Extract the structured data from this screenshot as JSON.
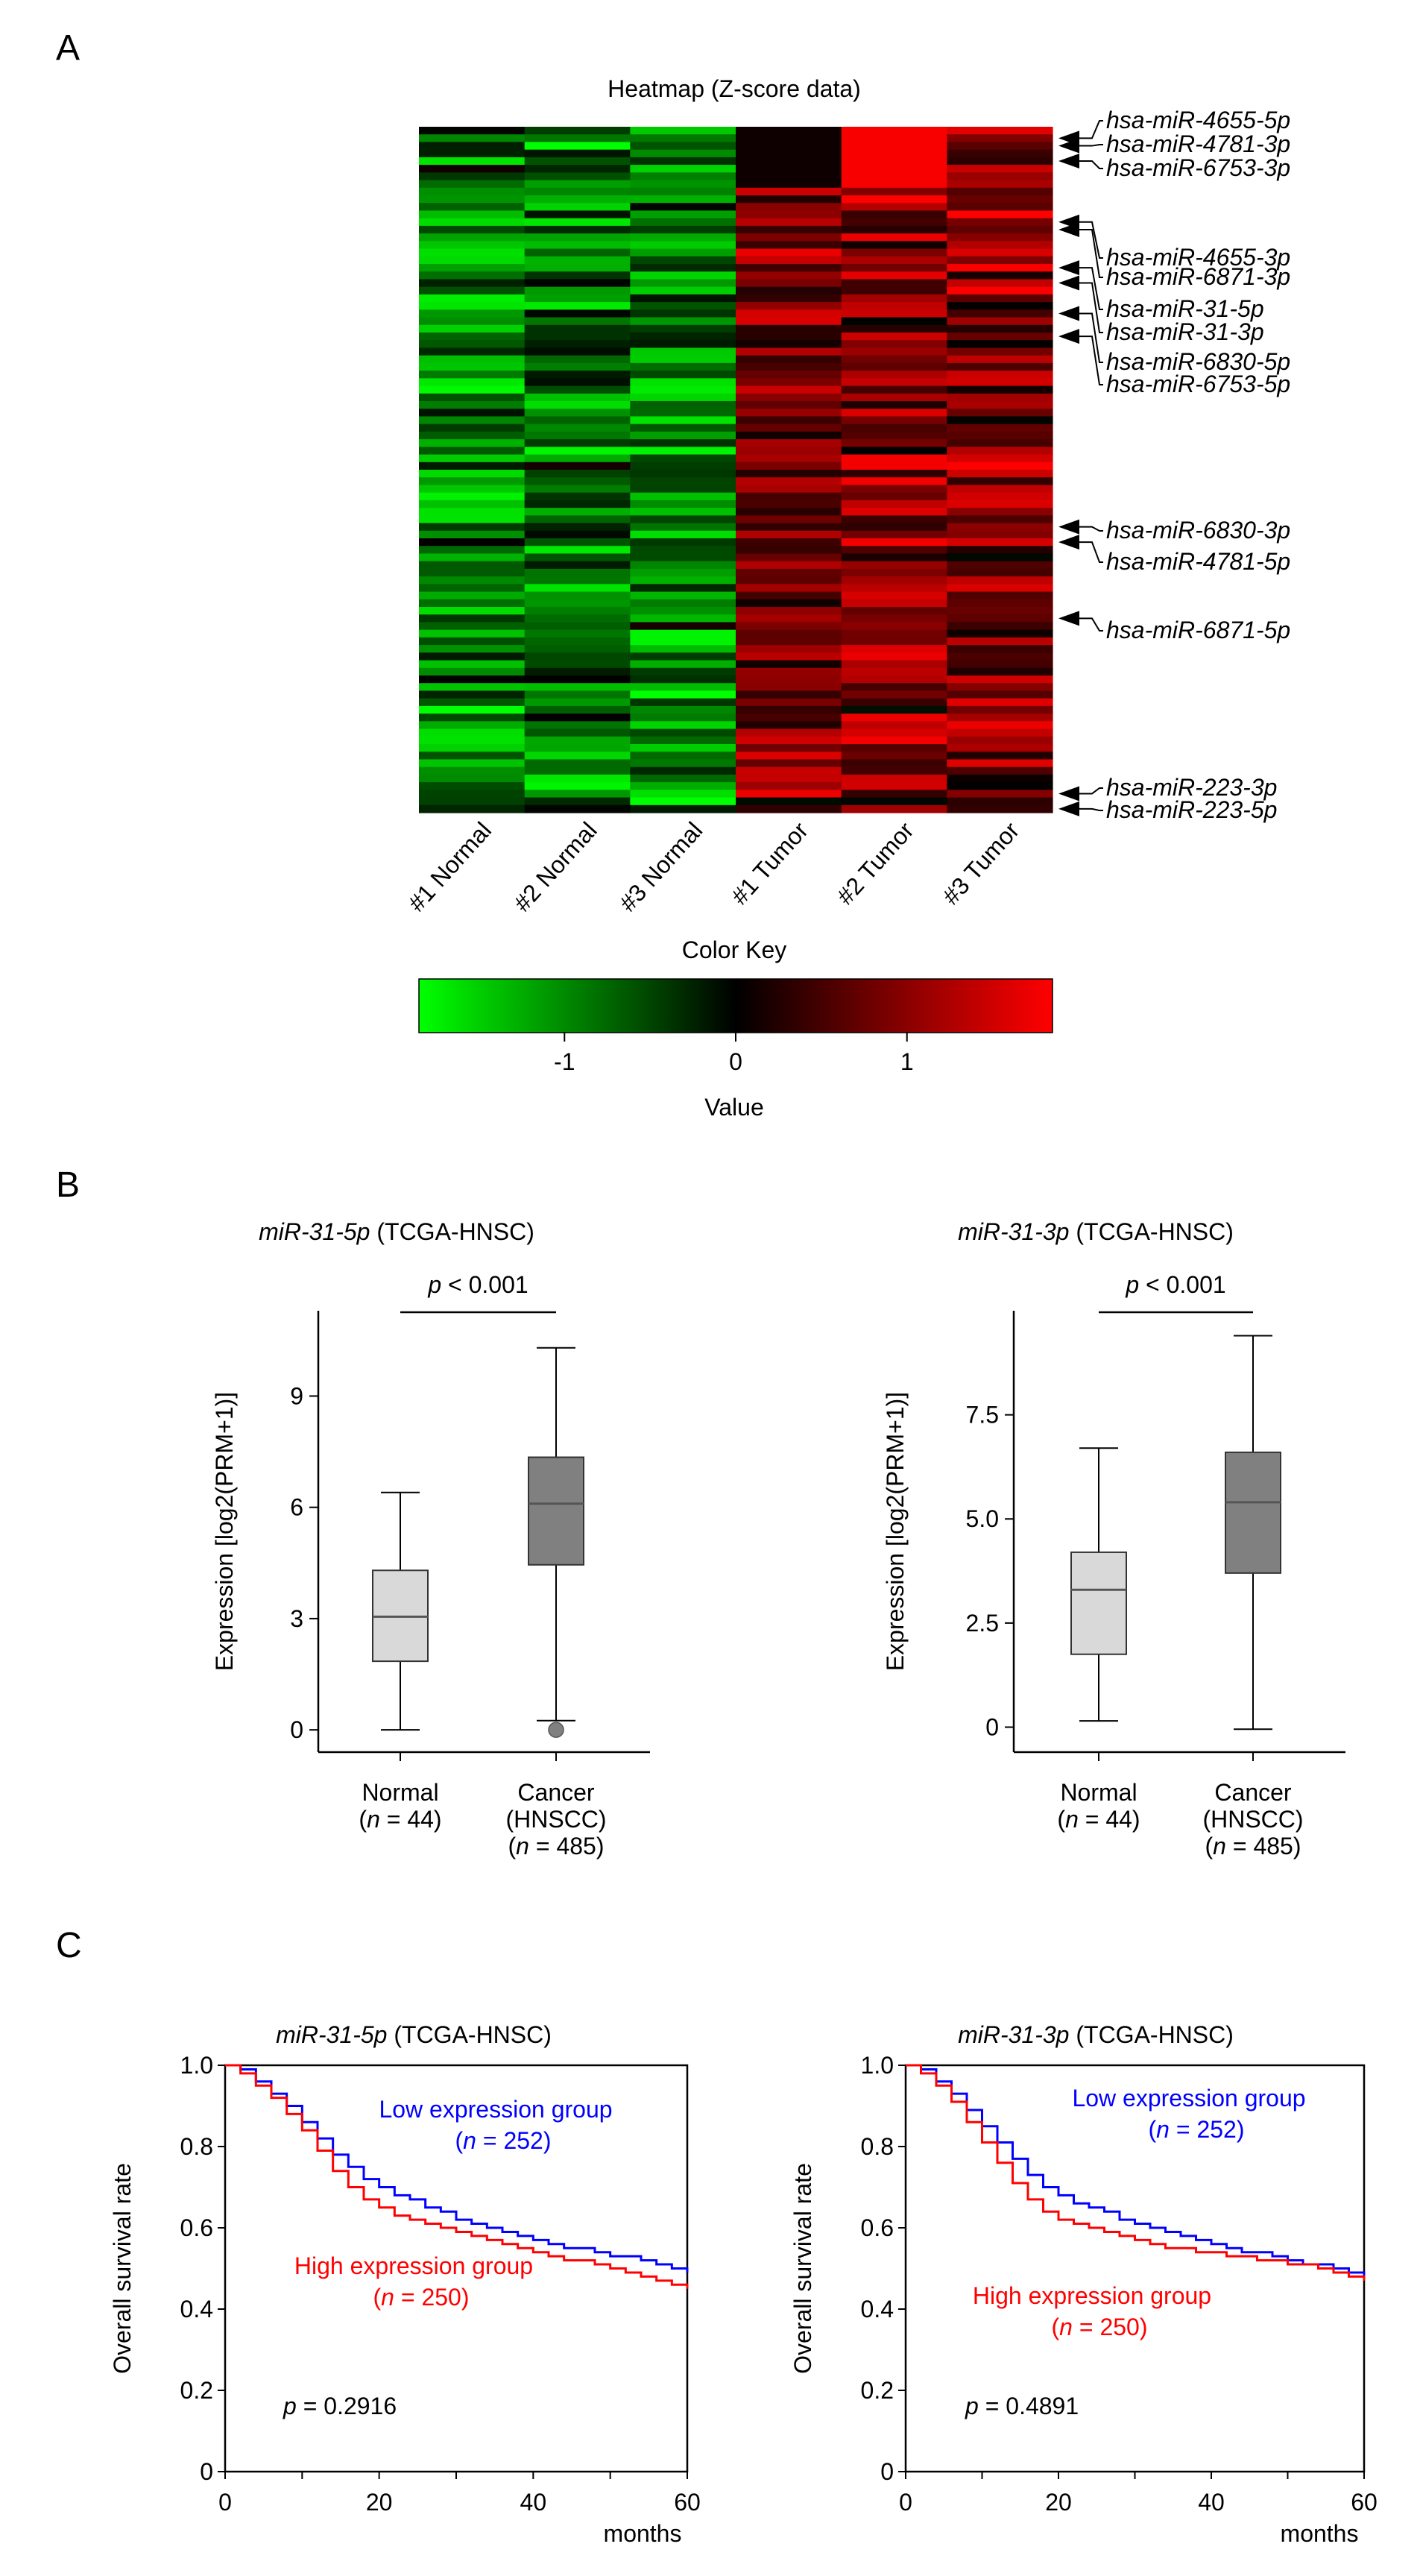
{
  "panels": {
    "a": "A",
    "b": "B",
    "c": "C"
  },
  "heatmap": {
    "title": "Heatmap (Z-score data)",
    "columns": [
      "#1 Normal",
      "#2 Normal",
      "#3 Normal",
      "#1 Tumor",
      "#2 Tumor",
      "#3 Tumor"
    ],
    "annotated_mirnas": [
      {
        "label": "hsa-miR-4655-5p",
        "row": 1
      },
      {
        "label": "hsa-miR-4781-3p",
        "row": 2
      },
      {
        "label": "hsa-miR-6753-3p",
        "row": 4
      },
      {
        "label": "hsa-miR-4655-3p",
        "row": 12
      },
      {
        "label": "hsa-miR-6871-3p",
        "row": 13
      },
      {
        "label": "hsa-miR-31-5p",
        "row": 18
      },
      {
        "label": "hsa-miR-31-3p",
        "row": 20
      },
      {
        "label": "hsa-miR-6830-5p",
        "row": 24
      },
      {
        "label": "hsa-miR-6753-5p",
        "row": 27
      },
      {
        "label": "hsa-miR-6830-3p",
        "row": 52
      },
      {
        "label": "hsa-miR-4781-5p",
        "row": 54
      },
      {
        "label": "hsa-miR-6871-5p",
        "row": 64
      },
      {
        "label": "hsa-miR-223-3p",
        "row": 87
      },
      {
        "label": "hsa-miR-223-5p",
        "row": 89
      }
    ],
    "colors": {
      "low": "#00ff00",
      "mid": "#000000",
      "high": "#ff0000"
    },
    "color_key": {
      "title": "Color Key",
      "xlabel": "Value",
      "ticks": [
        "-1",
        "0",
        "1"
      ],
      "range": [
        -1.85,
        1.85
      ]
    }
  },
  "chart_data": [
    {
      "type": "heatmap",
      "title": "Heatmap (Z-score data)",
      "columns": [
        "#1 Normal",
        "#2 Normal",
        "#3 Normal",
        "#1 Tumor",
        "#2 Tumor",
        "#3 Tumor"
      ],
      "n_rows": 90,
      "pattern": "Normal samples predominantly negative Z-scores (green); Tumor samples predominantly positive (red)",
      "value_range": [
        -1.85,
        1.85
      ]
    },
    {
      "type": "box",
      "title_gene": "miR-31-5p",
      "title_suffix": " (TCGA-HNSC)",
      "p_text": "p < 0.001",
      "ylabel": "Expression [log2(PRM+1)]",
      "ylim": [
        -0.6,
        11.3
      ],
      "yticks": [
        0,
        3,
        6,
        9
      ],
      "groups": [
        {
          "label": [
            "Normal",
            "(n = 44)"
          ],
          "min": 0.0,
          "q1": 1.85,
          "median": 3.05,
          "q3": 4.3,
          "max": 6.4,
          "outliers": [],
          "color": "#d9d9d9"
        },
        {
          "label": [
            "Cancer",
            "(HNSCC)",
            "(n = 485)"
          ],
          "min": 0.25,
          "q1": 4.45,
          "median": 6.1,
          "q3": 7.35,
          "max": 10.3,
          "outliers": [
            0.0
          ],
          "color": "#808080"
        }
      ]
    },
    {
      "type": "box",
      "title_gene": "miR-31-3p",
      "title_suffix": " (TCGA-HNSC)",
      "p_text": "p < 0.001",
      "ylabel": "Expression [log2(PRM+1)]",
      "ylim": [
        -0.6,
        10.0
      ],
      "yticks": [
        "0",
        "2.5",
        "5.0",
        "7.5"
      ],
      "groups": [
        {
          "label": [
            "Normal",
            "(n = 44)"
          ],
          "min": 0.15,
          "q1": 1.75,
          "median": 3.3,
          "q3": 4.2,
          "max": 6.7,
          "outliers": [],
          "color": "#d9d9d9"
        },
        {
          "label": [
            "Cancer",
            "(HNSCC)",
            "(n = 485)"
          ],
          "min": -0.05,
          "q1": 3.7,
          "median": 5.4,
          "q3": 6.6,
          "max": 9.4,
          "outliers": [],
          "color": "#808080"
        }
      ]
    },
    {
      "type": "line",
      "title_gene": "miR-31-5p",
      "title_suffix": " (TCGA-HNSC)",
      "ylabel": "Overall survival rate",
      "xlabel": "months",
      "xlim": [
        0,
        60
      ],
      "ylim": [
        0,
        1
      ],
      "xticks": [
        "0",
        "20",
        "40",
        "60"
      ],
      "yticks": [
        "0",
        "0.2",
        "0.4",
        "0.6",
        "0.8",
        "1.0"
      ],
      "p_value": "0.2916",
      "series": [
        {
          "name": "Low expression group",
          "n_text": "(n = 252)",
          "color": "#0000ff",
          "x": [
            0,
            2,
            4,
            6,
            8,
            10,
            12,
            14,
            16,
            18,
            20,
            22,
            24,
            26,
            28,
            30,
            32,
            34,
            36,
            38,
            40,
            42,
            44,
            46,
            48,
            50,
            52,
            54,
            56,
            58,
            60
          ],
          "y": [
            1.0,
            0.99,
            0.96,
            0.93,
            0.9,
            0.86,
            0.82,
            0.78,
            0.75,
            0.72,
            0.7,
            0.68,
            0.67,
            0.65,
            0.64,
            0.62,
            0.61,
            0.6,
            0.59,
            0.58,
            0.57,
            0.56,
            0.55,
            0.55,
            0.54,
            0.53,
            0.53,
            0.52,
            0.51,
            0.5,
            0.49
          ]
        },
        {
          "name": "High expression group",
          "n_text": "(n = 250)",
          "color": "#ff0000",
          "x": [
            0,
            2,
            4,
            6,
            8,
            10,
            12,
            14,
            16,
            18,
            20,
            22,
            24,
            26,
            28,
            30,
            32,
            34,
            36,
            38,
            40,
            42,
            44,
            46,
            48,
            50,
            52,
            54,
            56,
            58,
            60
          ],
          "y": [
            1.0,
            0.98,
            0.95,
            0.92,
            0.88,
            0.84,
            0.79,
            0.74,
            0.7,
            0.67,
            0.65,
            0.63,
            0.62,
            0.61,
            0.6,
            0.59,
            0.58,
            0.57,
            0.56,
            0.55,
            0.54,
            0.53,
            0.52,
            0.52,
            0.51,
            0.5,
            0.49,
            0.48,
            0.47,
            0.46,
            0.45
          ]
        }
      ]
    },
    {
      "type": "line",
      "title_gene": "miR-31-3p",
      "title_suffix": " (TCGA-HNSC)",
      "ylabel": "Overall survival rate",
      "xlabel": "months",
      "xlim": [
        0,
        60
      ],
      "ylim": [
        0,
        1
      ],
      "xticks": [
        "0",
        "20",
        "40",
        "60"
      ],
      "yticks": [
        "0",
        "0.2",
        "0.4",
        "0.6",
        "0.8",
        "1.0"
      ],
      "p_value": "0.4891",
      "series": [
        {
          "name": "Low expression group",
          "n_text": "(n = 252)",
          "color": "#0000ff",
          "x": [
            0,
            2,
            4,
            6,
            8,
            10,
            12,
            14,
            16,
            18,
            20,
            22,
            24,
            26,
            28,
            30,
            32,
            34,
            36,
            38,
            40,
            42,
            44,
            46,
            48,
            50,
            52,
            54,
            56,
            58,
            60
          ],
          "y": [
            1.0,
            0.99,
            0.96,
            0.93,
            0.89,
            0.85,
            0.81,
            0.77,
            0.73,
            0.7,
            0.68,
            0.66,
            0.65,
            0.64,
            0.62,
            0.61,
            0.6,
            0.59,
            0.58,
            0.57,
            0.56,
            0.55,
            0.54,
            0.54,
            0.53,
            0.52,
            0.51,
            0.51,
            0.5,
            0.49,
            0.47
          ]
        },
        {
          "name": "High expression group",
          "n_text": "(n = 250)",
          "color": "#ff0000",
          "x": [
            0,
            2,
            4,
            6,
            8,
            10,
            12,
            14,
            16,
            18,
            20,
            22,
            24,
            26,
            28,
            30,
            32,
            34,
            36,
            38,
            40,
            42,
            44,
            46,
            48,
            50,
            52,
            54,
            56,
            58,
            60
          ],
          "y": [
            1.0,
            0.98,
            0.95,
            0.91,
            0.86,
            0.81,
            0.76,
            0.71,
            0.67,
            0.64,
            0.62,
            0.61,
            0.6,
            0.59,
            0.58,
            0.57,
            0.56,
            0.55,
            0.55,
            0.54,
            0.54,
            0.53,
            0.53,
            0.52,
            0.52,
            0.51,
            0.51,
            0.5,
            0.49,
            0.48,
            0.47
          ]
        }
      ]
    }
  ]
}
